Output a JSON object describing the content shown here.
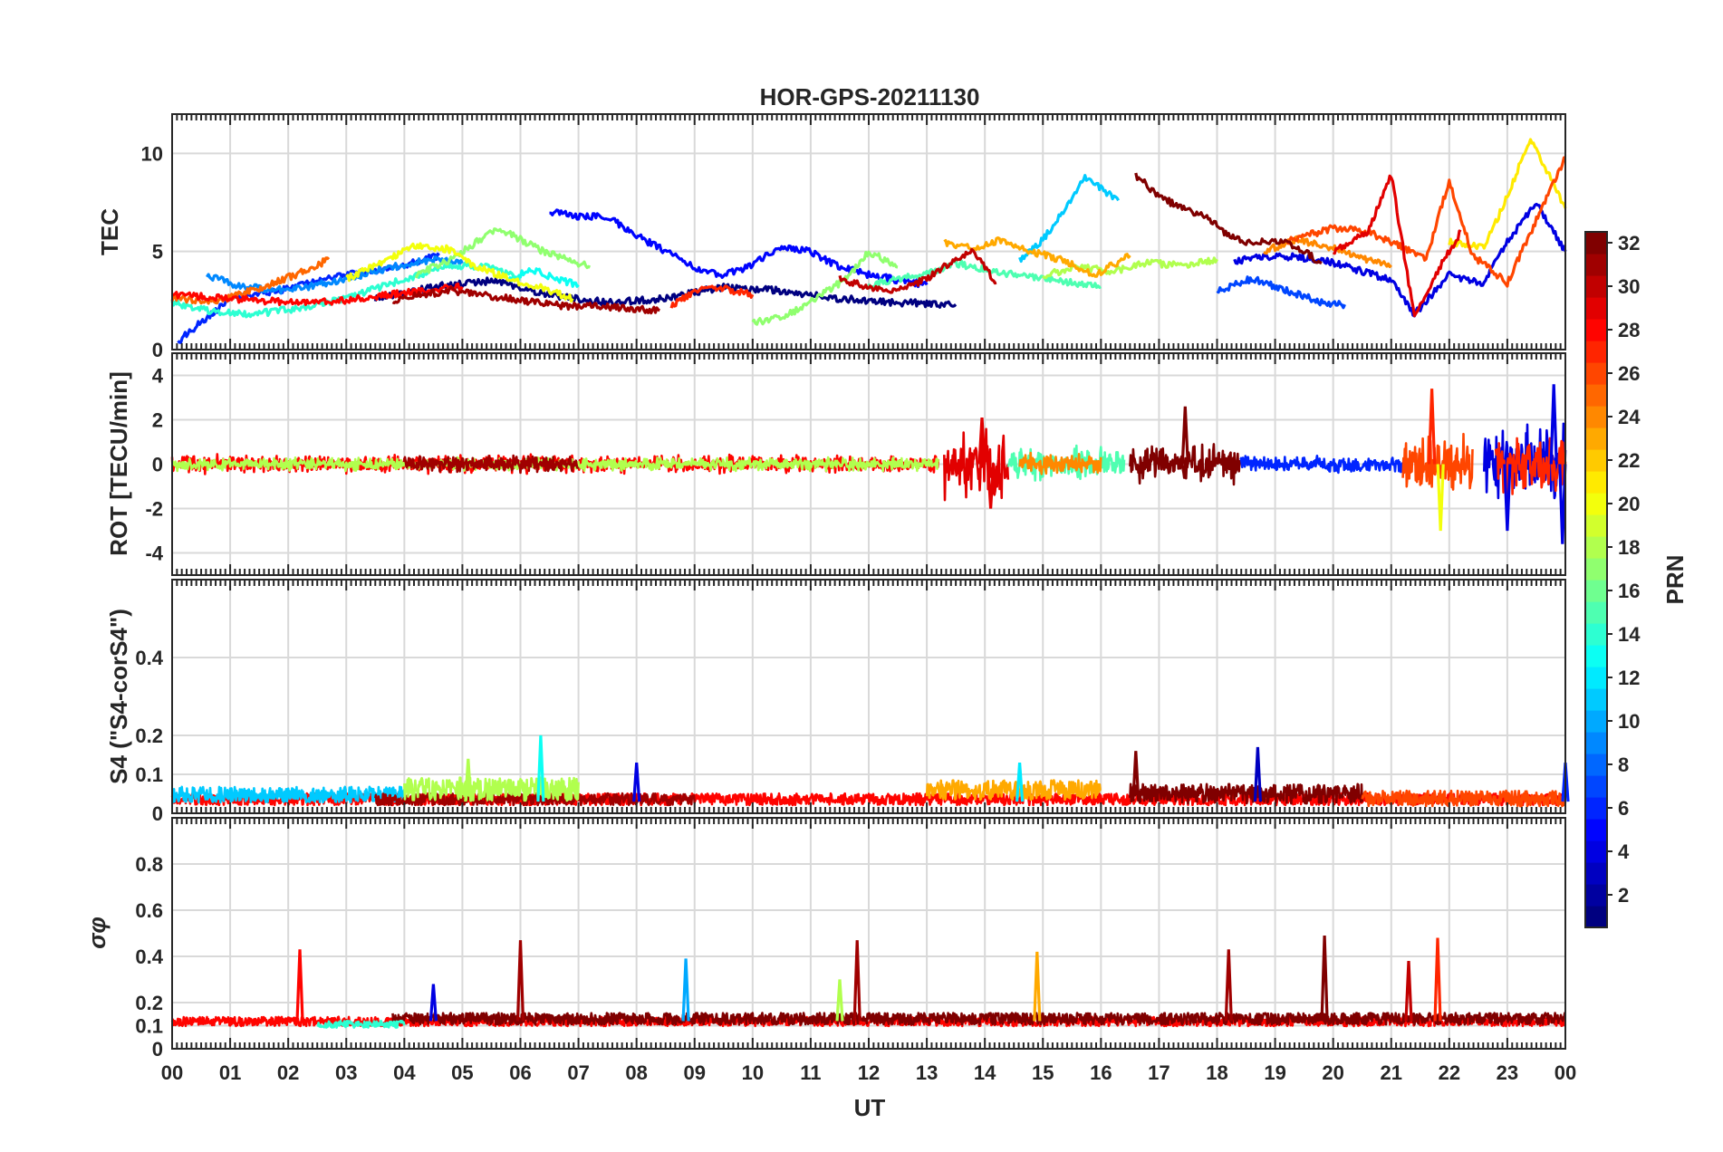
{
  "chart_data": {
    "type": "line",
    "title": "HOR-GPS-20211130",
    "xlabel": "UT",
    "x_tick_labels": [
      "00",
      "01",
      "02",
      "03",
      "04",
      "05",
      "06",
      "07",
      "08",
      "09",
      "10",
      "11",
      "12",
      "13",
      "14",
      "15",
      "16",
      "17",
      "18",
      "19",
      "20",
      "21",
      "22",
      "23",
      "00"
    ],
    "xlim": [
      0,
      24
    ],
    "colorbar": {
      "label": "PRN",
      "range": [
        1,
        32
      ],
      "ticks": [
        "2",
        "4",
        "6",
        "8",
        "10",
        "12",
        "14",
        "16",
        "18",
        "20",
        "22",
        "24",
        "26",
        "28",
        "30",
        "32"
      ],
      "colormap": "jet"
    },
    "panels": [
      {
        "name": "tec",
        "ylabel": "TEC",
        "ylim": [
          0,
          12
        ],
        "yticks": [
          "0",
          "5",
          "10"
        ],
        "series": [
          {
            "prn": 1,
            "x": [
              3.5,
              4.5,
              5.5,
              6.5,
              7.5,
              8.5,
              9.5,
              10.5,
              11.5,
              12.5,
              13.5
            ],
            "values": [
              2.6,
              3.2,
              3.5,
              2.8,
              2.4,
              2.6,
              3.2,
              3.0,
              2.6,
              2.4,
              2.3
            ]
          },
          {
            "prn": 4,
            "x": [
              18.3,
              19.0,
              19.8,
              20.5,
              21.0,
              21.4,
              22.0,
              22.6,
              23.0,
              23.5,
              24.0
            ],
            "values": [
              4.5,
              4.8,
              4.6,
              4.0,
              3.5,
              1.8,
              3.8,
              3.4,
              5.5,
              7.5,
              5.0
            ]
          },
          {
            "prn": 5,
            "x": [
              6.5,
              7.0,
              7.5,
              8.0,
              8.5,
              9.0,
              9.5,
              10.0,
              10.5,
              11.0,
              11.5,
              12.0,
              13.0
            ],
            "values": [
              7.0,
              6.8,
              6.8,
              5.8,
              5.0,
              4.2,
              3.8,
              4.3,
              5.3,
              5.0,
              4.2,
              3.8,
              3.3
            ]
          },
          {
            "prn": 6,
            "x": [
              0.1,
              0.5,
              1.0,
              2.0,
              3.0,
              4.0,
              4.6
            ],
            "values": [
              0.4,
              1.4,
              2.6,
              3.1,
              3.8,
              4.3,
              4.8
            ]
          },
          {
            "prn": 7,
            "x": [
              18.0,
              18.6,
              19.2,
              19.8,
              20.2
            ],
            "values": [
              3.0,
              3.6,
              3.0,
              2.4,
              2.3
            ]
          },
          {
            "prn": 9,
            "x": [
              0.6,
              1.2,
              2.0,
              3.0,
              3.8,
              4.5,
              5.0
            ],
            "values": [
              3.8,
              3.2,
              3.0,
              3.6,
              4.2,
              4.6,
              4.4
            ]
          },
          {
            "prn": 11,
            "x": [
              14.6,
              15.0,
              15.4,
              15.7,
              16.0,
              16.3
            ],
            "values": [
              4.6,
              5.6,
              7.2,
              8.8,
              8.2,
              7.6
            ]
          },
          {
            "prn": 13,
            "x": [
              5.8,
              6.2,
              6.6,
              7.0
            ],
            "values": [
              3.6,
              4.1,
              3.6,
              3.3
            ]
          },
          {
            "prn": 14,
            "x": [
              0.0,
              0.6,
              1.4,
              2.4,
              3.2,
              4.0,
              4.8,
              5.5,
              6.0
            ],
            "values": [
              2.4,
              2.0,
              1.8,
              2.2,
              2.8,
              3.6,
              4.3,
              4.2,
              3.6
            ]
          },
          {
            "prn": 15,
            "x": [
              12.0,
              12.5,
              13.0,
              13.5,
              14.0,
              14.5,
              15.0,
              15.5,
              16.0
            ],
            "values": [
              3.3,
              3.6,
              3.9,
              4.4,
              4.1,
              3.8,
              3.6,
              3.4,
              3.2
            ]
          },
          {
            "prn": 17,
            "x": [
              4.2,
              4.8,
              5.2,
              5.6,
              6.0,
              6.4,
              6.8,
              7.2
            ],
            "values": [
              3.8,
              4.6,
              5.4,
              6.2,
              5.6,
              5.0,
              4.6,
              4.2
            ]
          },
          {
            "prn": 17,
            "x": [
              10.0,
              10.5,
              11.0,
              11.6,
              12.0,
              12.5
            ],
            "values": [
              1.4,
              1.6,
              2.4,
              3.6,
              5.0,
              4.2
            ]
          },
          {
            "prn": 18,
            "x": [
              15.0,
              15.6,
              16.2,
              16.8,
              17.4,
              18.0
            ],
            "values": [
              3.8,
              4.2,
              4.0,
              4.4,
              4.3,
              4.6
            ]
          },
          {
            "prn": 20,
            "x": [
              3.0,
              3.6,
              4.2,
              4.8,
              5.2,
              5.8,
              6.3,
              6.9
            ],
            "values": [
              3.6,
              4.4,
              5.3,
              5.1,
              4.3,
              3.6,
              3.2,
              2.6
            ]
          },
          {
            "prn": 21,
            "x": [
              22.0,
              22.6,
              23.0,
              23.4,
              23.7,
              24.0
            ],
            "values": [
              5.5,
              5.2,
              7.8,
              10.8,
              9.0,
              7.2
            ]
          },
          {
            "prn": 23,
            "x": [
              13.3,
              13.8,
              14.3,
              14.8,
              15.3,
              15.9,
              16.5
            ],
            "values": [
              5.4,
              5.2,
              5.6,
              5.0,
              4.6,
              3.8,
              4.8
            ]
          },
          {
            "prn": 24,
            "x": [
              18.8,
              19.4,
              20.0,
              20.6,
              21.0
            ],
            "values": [
              5.0,
              5.6,
              5.2,
              4.6,
              4.3
            ]
          },
          {
            "prn": 25,
            "x": [
              0.0,
              0.8,
              1.6,
              2.2,
              2.7
            ],
            "values": [
              2.6,
              2.5,
              3.2,
              3.9,
              4.6
            ]
          },
          {
            "prn": 26,
            "x": [
              19.2,
              20.0,
              20.6,
              21.2,
              21.6,
              22.0,
              22.4,
              23.0,
              23.5,
              24.0
            ],
            "values": [
              5.5,
              6.2,
              6.0,
              5.2,
              4.6,
              8.6,
              4.8,
              3.4,
              6.6,
              9.8
            ]
          },
          {
            "prn": 27,
            "x": [
              8.6,
              9.0,
              9.5,
              10.0
            ],
            "values": [
              2.2,
              3.0,
              3.1,
              2.8
            ]
          },
          {
            "prn": 28,
            "x": [
              0.0,
              1.0,
              2.0,
              3.0,
              4.0,
              5.0
            ],
            "values": [
              2.8,
              2.6,
              2.4,
              2.5,
              2.9,
              3.2
            ]
          },
          {
            "prn": 29,
            "x": [
              20.0,
              20.6,
              21.0,
              21.4,
              21.8,
              22.2
            ],
            "values": [
              5.0,
              6.0,
              8.9,
              1.6,
              4.0,
              6.0
            ]
          },
          {
            "prn": 30,
            "x": [
              11.5,
              12.0,
              12.5,
              13.0,
              13.4,
              13.8,
              14.2
            ],
            "values": [
              3.6,
              3.2,
              3.0,
              3.6,
              4.4,
              5.0,
              3.4
            ]
          },
          {
            "prn": 31,
            "x": [
              3.8,
              4.3,
              4.8,
              5.3,
              5.8,
              6.3,
              6.8,
              7.3,
              7.8,
              8.4
            ],
            "values": [
              2.5,
              2.8,
              3.0,
              2.8,
              2.6,
              2.4,
              2.2,
              2.2,
              2.1,
              2.0
            ]
          },
          {
            "prn": 32,
            "x": [
              16.6,
              17.0,
              17.4,
              17.8,
              18.2,
              18.6,
              19.0,
              19.4,
              19.8
            ],
            "values": [
              8.9,
              7.8,
              7.2,
              6.8,
              5.8,
              5.4,
              5.6,
              5.2,
              4.4
            ]
          }
        ]
      },
      {
        "name": "rot",
        "ylabel": "ROT [TECU/min]",
        "ylim": [
          -5,
          5
        ],
        "yticks": [
          "-4",
          "-2",
          "0",
          "2",
          "4"
        ],
        "noise": [
          {
            "prn": 28,
            "x": [
              0.0,
              13.2
            ],
            "amp": 0.35
          },
          {
            "prn": 18,
            "x": [
              0.0,
              13.2
            ],
            "amp": 0.25
          },
          {
            "prn": 31,
            "x": [
              4.0,
              7.0
            ],
            "amp": 0.35
          },
          {
            "prn": 29,
            "x": [
              13.3,
              14.4
            ],
            "amp": 1.4
          },
          {
            "prn": 15,
            "x": [
              14.4,
              16.4
            ],
            "amp": 0.7
          },
          {
            "prn": 24,
            "x": [
              14.6,
              16.0
            ],
            "amp": 0.4
          },
          {
            "prn": 32,
            "x": [
              16.5,
              18.4
            ],
            "amp": 0.8
          },
          {
            "prn": 6,
            "x": [
              18.4,
              21.2
            ],
            "amp": 0.35
          },
          {
            "prn": 26,
            "x": [
              21.2,
              22.4
            ],
            "amp": 1.1
          },
          {
            "prn": 4,
            "x": [
              22.6,
              24.0
            ],
            "amp": 1.5
          },
          {
            "prn": 27,
            "x": [
              22.8,
              24.0
            ],
            "amp": 1.2
          }
        ],
        "spikes": [
          {
            "prn": 29,
            "x": 13.95,
            "value": 2.1
          },
          {
            "prn": 29,
            "x": 14.1,
            "value": -2.0
          },
          {
            "prn": 32,
            "x": 17.45,
            "value": 2.6
          },
          {
            "prn": 27,
            "x": 21.7,
            "value": 3.4
          },
          {
            "prn": 20,
            "x": 21.85,
            "value": -3.0
          },
          {
            "prn": 4,
            "x": 23.0,
            "value": -3.0
          },
          {
            "prn": 4,
            "x": 23.8,
            "value": 3.6
          },
          {
            "prn": 4,
            "x": 23.95,
            "value": -3.6
          }
        ]
      },
      {
        "name": "s4",
        "ylabel": "S4 (\"S4-corS4\")",
        "ylim": [
          0,
          0.6
        ],
        "yticks": [
          "0",
          "0.1",
          "0.2",
          "0.4"
        ],
        "noise": [
          {
            "prn": 28,
            "x": [
              0.0,
              24.0
            ],
            "base": 0.03,
            "amp": 0.03
          },
          {
            "prn": 11,
            "x": [
              0.0,
              4.0
            ],
            "base": 0.04,
            "amp": 0.04
          },
          {
            "prn": 31,
            "x": [
              3.5,
              9.0
            ],
            "base": 0.03,
            "amp": 0.03
          },
          {
            "prn": 18,
            "x": [
              4.0,
              7.0
            ],
            "base": 0.05,
            "amp": 0.06
          },
          {
            "prn": 23,
            "x": [
              13.0,
              16.0
            ],
            "base": 0.05,
            "amp": 0.05
          },
          {
            "prn": 32,
            "x": [
              16.5,
              20.5
            ],
            "base": 0.04,
            "amp": 0.05
          },
          {
            "prn": 26,
            "x": [
              20.5,
              24.0
            ],
            "base": 0.03,
            "amp": 0.04
          }
        ],
        "spikes": [
          {
            "prn": 13,
            "x": 6.35,
            "value": 0.2
          },
          {
            "prn": 18,
            "x": 5.1,
            "value": 0.14
          },
          {
            "prn": 4,
            "x": 8.0,
            "value": 0.13
          },
          {
            "prn": 32,
            "x": 16.6,
            "value": 0.16
          },
          {
            "prn": 3,
            "x": 18.7,
            "value": 0.17
          },
          {
            "prn": 12,
            "x": 14.6,
            "value": 0.13
          },
          {
            "prn": 6,
            "x": 24.0,
            "value": 0.13
          }
        ]
      },
      {
        "name": "sigma-phi",
        "ylabel": "σφ",
        "ylim": [
          0,
          1
        ],
        "yticks": [
          "0",
          "0.1",
          "0.2",
          "0.4",
          "0.6",
          "0.8"
        ],
        "noise": [
          {
            "prn": 28,
            "x": [
              0.0,
              24.0
            ],
            "base": 0.11,
            "amp": 0.04
          },
          {
            "prn": 32,
            "x": [
              3.8,
              24.0
            ],
            "base": 0.12,
            "amp": 0.05
          },
          {
            "prn": 14,
            "x": [
              2.5,
              4.0
            ],
            "base": 0.1,
            "amp": 0.03
          }
        ],
        "spikes": [
          {
            "prn": 28,
            "x": 2.2,
            "value": 0.43
          },
          {
            "prn": 31,
            "x": 6.0,
            "value": 0.47
          },
          {
            "prn": 10,
            "x": 8.85,
            "value": 0.39
          },
          {
            "prn": 31,
            "x": 11.8,
            "value": 0.47
          },
          {
            "prn": 23,
            "x": 14.9,
            "value": 0.42
          },
          {
            "prn": 31,
            "x": 18.2,
            "value": 0.43
          },
          {
            "prn": 32,
            "x": 19.85,
            "value": 0.49
          },
          {
            "prn": 27,
            "x": 21.8,
            "value": 0.48
          },
          {
            "prn": 30,
            "x": 21.3,
            "value": 0.38
          },
          {
            "prn": 4,
            "x": 4.5,
            "value": 0.28
          },
          {
            "prn": 18,
            "x": 11.5,
            "value": 0.3
          }
        ]
      }
    ]
  }
}
